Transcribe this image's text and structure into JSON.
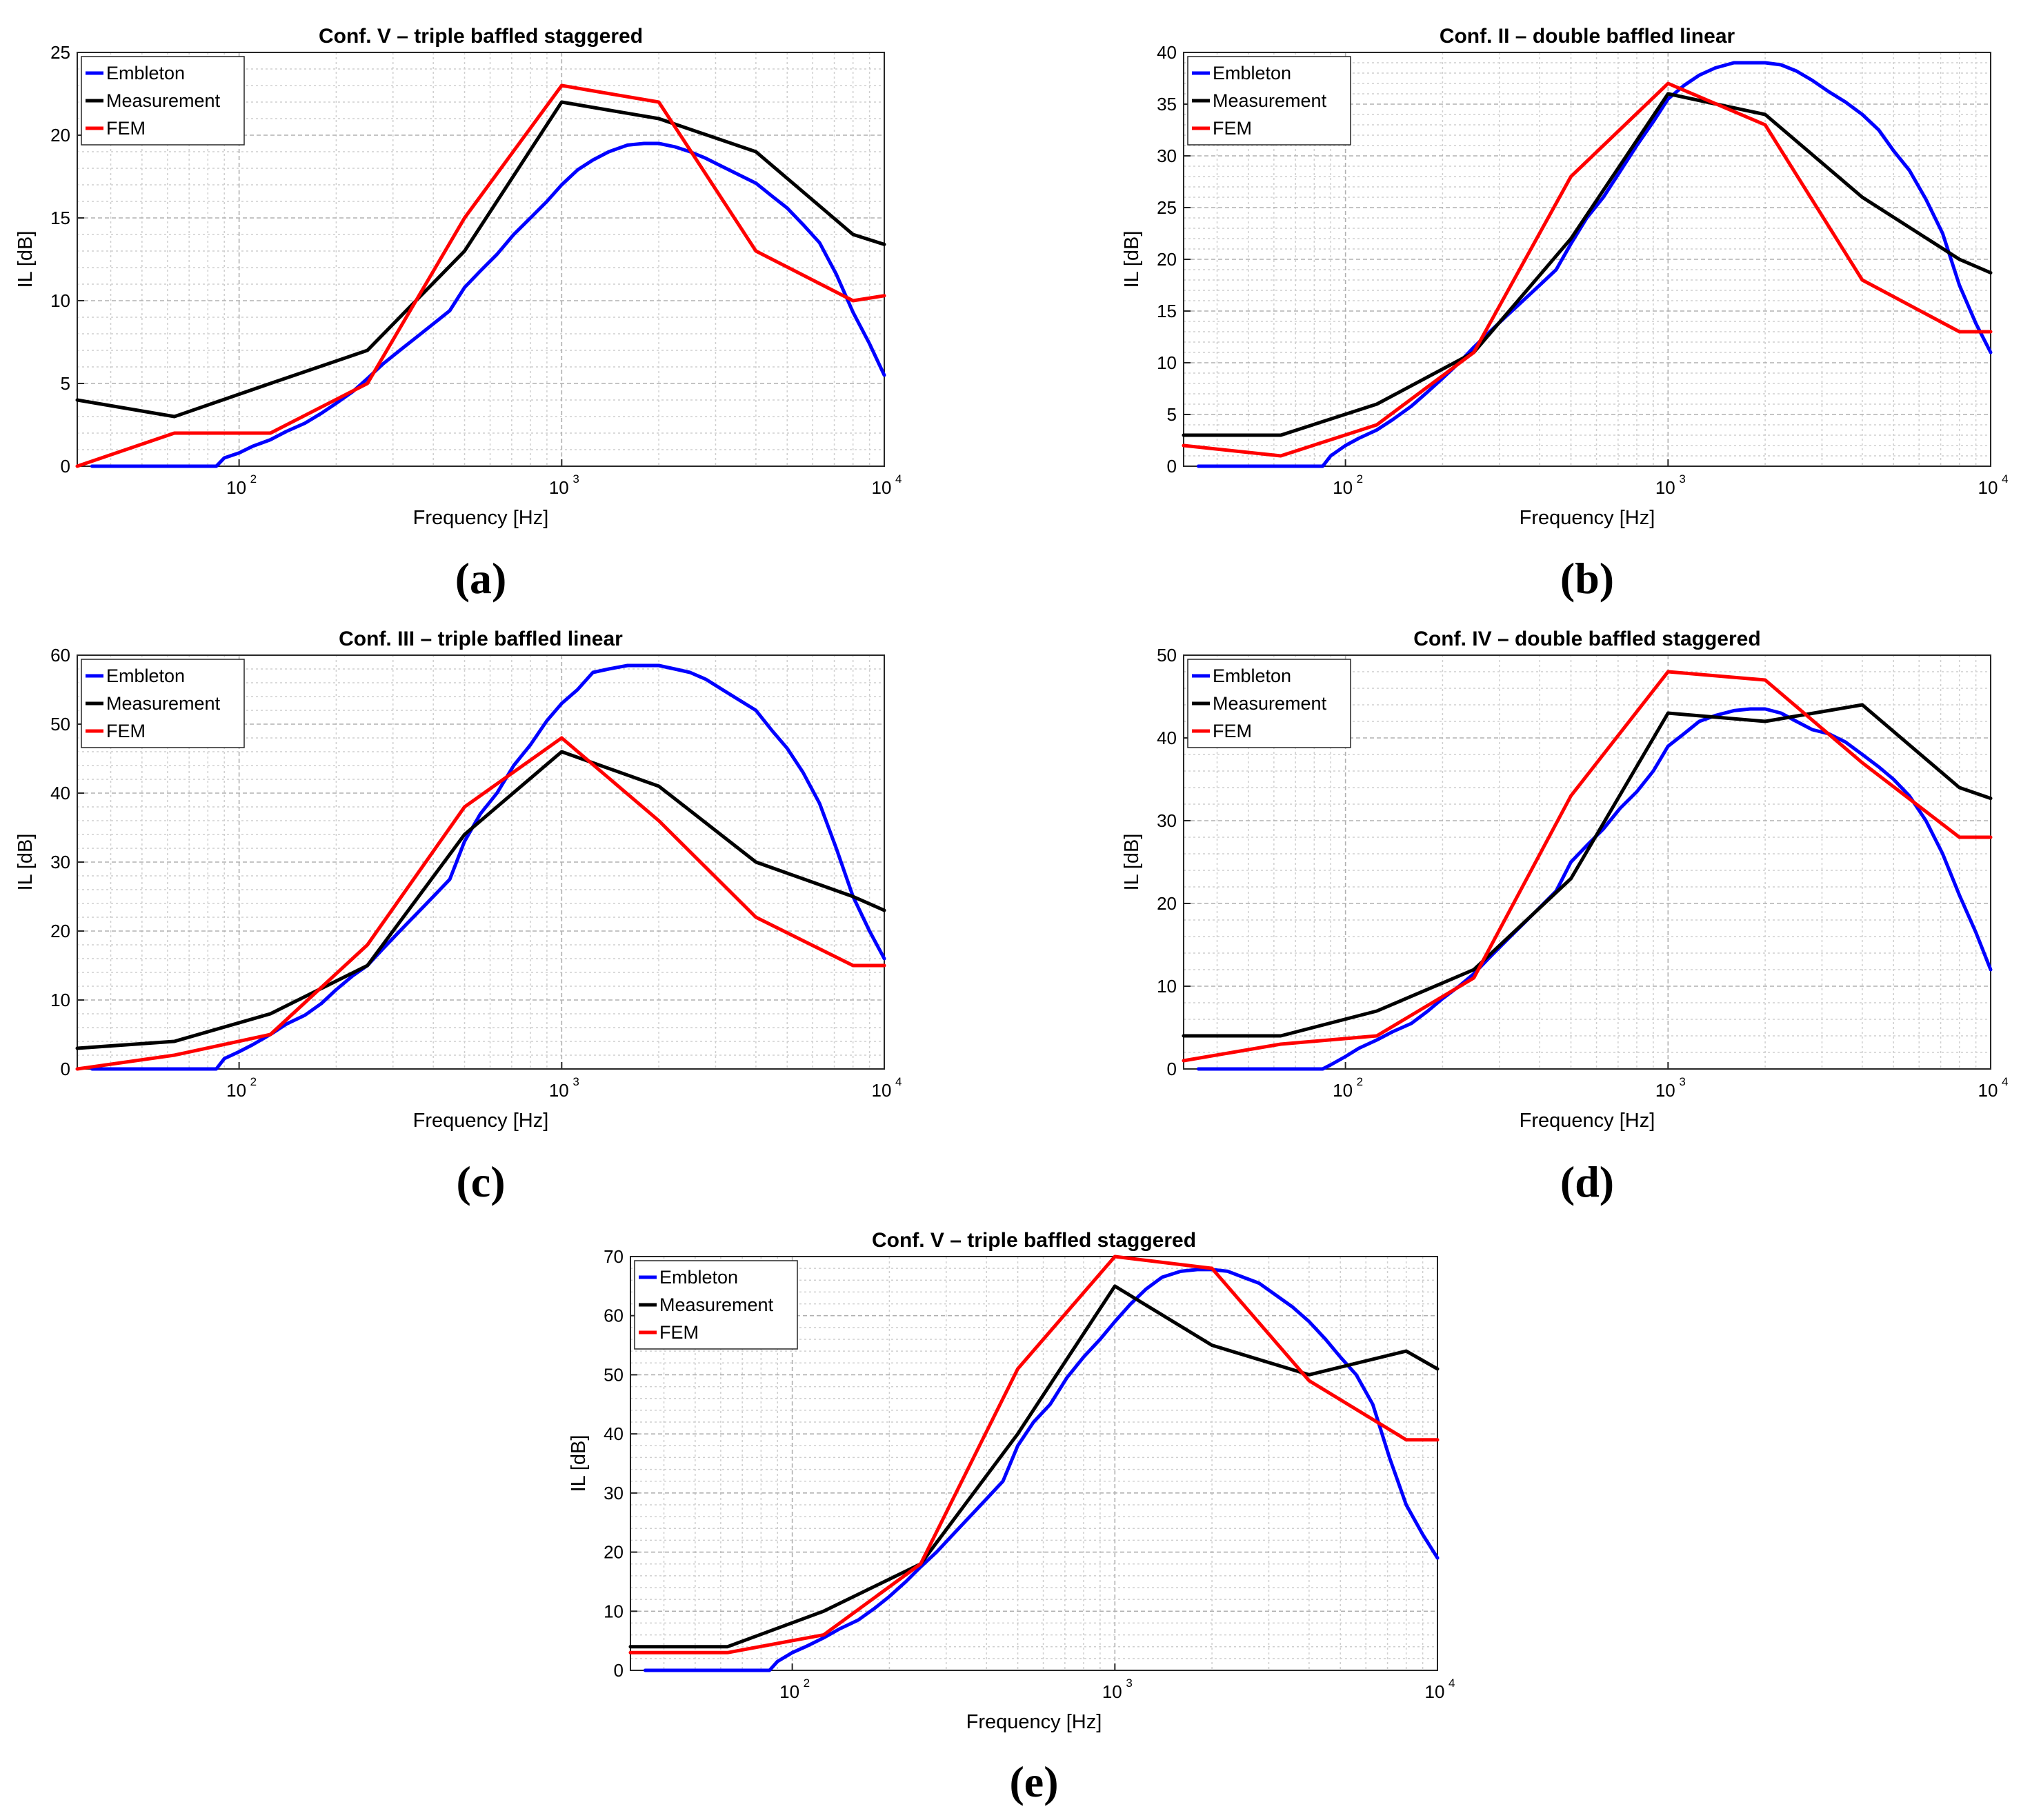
{
  "chart_data": [
    {
      "type": "line",
      "panel_label": "(a)",
      "title": "Conf. V – triple baffled staggered",
      "xlabel": "Frequency [Hz]",
      "ylabel": "IL [dB]",
      "xscale": "log",
      "xlim": [
        31.5,
        10000
      ],
      "ylim": [
        0,
        25
      ],
      "yticks": [
        0,
        5,
        10,
        15,
        20,
        25
      ],
      "xticks": [
        {
          "base": "10",
          "exp": "2"
        },
        {
          "base": "10",
          "exp": "3"
        },
        {
          "base": "10",
          "exp": "4"
        }
      ],
      "grid": true,
      "legend": "top-left",
      "series": [
        {
          "name": "Embleton",
          "color": "#0000ff",
          "x": [
            35,
            50,
            70,
            85,
            90,
            100,
            110,
            125,
            140,
            160,
            180,
            200,
            225,
            250,
            280,
            315,
            355,
            400,
            450,
            500,
            560,
            630,
            710,
            800,
            900,
            1000,
            1120,
            1250,
            1400,
            1600,
            1800,
            2000,
            2240,
            2500,
            2800,
            3150,
            3550,
            4000,
            4500,
            5000,
            5600,
            6300,
            7100,
            8000,
            9000,
            10000
          ],
          "y": [
            0,
            0,
            0,
            0,
            0.5,
            0.8,
            1.2,
            1.6,
            2.1,
            2.6,
            3.2,
            3.8,
            4.5,
            5.3,
            6.2,
            7.0,
            7.8,
            8.6,
            9.4,
            10.8,
            11.8,
            12.8,
            14.0,
            15.0,
            16.0,
            17.0,
            17.9,
            18.5,
            19.0,
            19.4,
            19.5,
            19.5,
            19.3,
            19.0,
            18.6,
            18.1,
            17.6,
            17.1,
            16.3,
            15.6,
            14.6,
            13.5,
            11.6,
            9.3,
            7.4,
            5.5
          ]
        },
        {
          "name": "Measurement",
          "color": "#000000",
          "x": [
            31.5,
            63,
            125,
            250,
            500,
            1000,
            2000,
            4000,
            8000,
            10000
          ],
          "y": [
            4,
            3,
            5,
            7,
            13,
            22,
            21,
            19,
            14,
            13.4
          ]
        },
        {
          "name": "FEM",
          "color": "#ff0000",
          "x": [
            31.5,
            63,
            125,
            250,
            500,
            1000,
            2000,
            4000,
            8000,
            10000
          ],
          "y": [
            0,
            2,
            2,
            5,
            15,
            23,
            22,
            13,
            10,
            10.3
          ]
        }
      ]
    },
    {
      "type": "line",
      "panel_label": "(b)",
      "title": "Conf. II – double baffled linear",
      "xlabel": "Frequency [Hz]",
      "ylabel": "IL [dB]",
      "xscale": "log",
      "xlim": [
        31.5,
        10000
      ],
      "ylim": [
        0,
        40
      ],
      "yticks": [
        0,
        5,
        10,
        15,
        20,
        25,
        30,
        35,
        40
      ],
      "xticks": [
        {
          "base": "10",
          "exp": "2"
        },
        {
          "base": "10",
          "exp": "3"
        },
        {
          "base": "10",
          "exp": "4"
        }
      ],
      "grid": true,
      "legend": "top-left",
      "series": [
        {
          "name": "Embleton",
          "color": "#0000ff",
          "x": [
            35,
            50,
            70,
            85,
            90,
            100,
            110,
            125,
            140,
            160,
            180,
            200,
            225,
            250,
            280,
            315,
            355,
            400,
            450,
            500,
            560,
            630,
            710,
            800,
            900,
            1000,
            1120,
            1250,
            1400,
            1600,
            1800,
            2000,
            2240,
            2500,
            2800,
            3150,
            3550,
            4000,
            4500,
            5000,
            5600,
            6300,
            7100,
            8000,
            9000,
            10000
          ],
          "y": [
            0,
            0,
            0,
            0,
            1,
            2,
            2.7,
            3.5,
            4.5,
            5.8,
            7.2,
            8.5,
            10,
            11.5,
            13,
            14.5,
            16,
            17.5,
            19,
            21.5,
            24,
            26,
            28.5,
            31,
            33.3,
            35.5,
            36.8,
            37.8,
            38.5,
            39,
            39,
            39,
            38.8,
            38.2,
            37.3,
            36.2,
            35.2,
            34,
            32.5,
            30.5,
            28.6,
            25.8,
            22.5,
            17.5,
            13.8,
            11
          ]
        },
        {
          "name": "Measurement",
          "color": "#000000",
          "x": [
            31.5,
            63,
            125,
            250,
            500,
            1000,
            2000,
            4000,
            8000,
            10000
          ],
          "y": [
            3,
            3,
            6,
            11,
            22,
            36,
            34,
            26,
            20,
            18.7
          ]
        },
        {
          "name": "FEM",
          "color": "#ff0000",
          "x": [
            31.5,
            63,
            125,
            250,
            500,
            1000,
            2000,
            4000,
            8000,
            10000
          ],
          "y": [
            2,
            1,
            4,
            11,
            28,
            37,
            33,
            18,
            13,
            13
          ]
        }
      ]
    },
    {
      "type": "line",
      "panel_label": "(c)",
      "title": "Conf. III – triple baffled linear",
      "xlabel": "Frequency [Hz]",
      "ylabel": "IL [dB]",
      "xscale": "log",
      "xlim": [
        31.5,
        10000
      ],
      "ylim": [
        0,
        60
      ],
      "yticks": [
        0,
        10,
        20,
        30,
        40,
        50,
        60
      ],
      "xticks": [
        {
          "base": "10",
          "exp": "2"
        },
        {
          "base": "10",
          "exp": "3"
        },
        {
          "base": "10",
          "exp": "4"
        }
      ],
      "grid": true,
      "legend": "top-left",
      "series": [
        {
          "name": "Embleton",
          "color": "#0000ff",
          "x": [
            35,
            50,
            70,
            85,
            90,
            100,
            110,
            125,
            140,
            160,
            180,
            200,
            225,
            250,
            280,
            315,
            355,
            400,
            450,
            500,
            560,
            630,
            710,
            800,
            900,
            1000,
            1120,
            1250,
            1400,
            1600,
            1800,
            2000,
            2240,
            2500,
            2800,
            3150,
            3550,
            4000,
            4500,
            5000,
            5600,
            6300,
            7100,
            8000,
            9000,
            10000
          ],
          "y": [
            0,
            0,
            0,
            0,
            1.5,
            2.5,
            3.5,
            5,
            6.5,
            7.8,
            9.5,
            11.5,
            13.5,
            15,
            17.5,
            20,
            22.5,
            25,
            27.5,
            33,
            37,
            40,
            44,
            47,
            50.5,
            53,
            55,
            57.5,
            58,
            58.5,
            58.5,
            58.5,
            58,
            57.5,
            56.5,
            55,
            53.5,
            52,
            49,
            46.5,
            43,
            38.5,
            32,
            25,
            20,
            16
          ]
        },
        {
          "name": "Measurement",
          "color": "#000000",
          "x": [
            31.5,
            63,
            125,
            250,
            500,
            1000,
            2000,
            4000,
            8000,
            10000
          ],
          "y": [
            3,
            4,
            8,
            15,
            34,
            46,
            41,
            30,
            25,
            23
          ]
        },
        {
          "name": "FEM",
          "color": "#ff0000",
          "x": [
            31.5,
            63,
            125,
            250,
            500,
            1000,
            2000,
            4000,
            8000,
            10000
          ],
          "y": [
            0,
            2,
            5,
            18,
            38,
            48,
            36,
            22,
            15,
            15
          ]
        }
      ]
    },
    {
      "type": "line",
      "panel_label": "(d)",
      "title": "Conf. IV – double baffled staggered",
      "xlabel": "Frequency [Hz]",
      "ylabel": "IL [dB]",
      "xscale": "log",
      "xlim": [
        31.5,
        10000
      ],
      "ylim": [
        0,
        50
      ],
      "yticks": [
        0,
        10,
        20,
        30,
        40,
        50
      ],
      "xticks": [
        {
          "base": "10",
          "exp": "2"
        },
        {
          "base": "10",
          "exp": "3"
        },
        {
          "base": "10",
          "exp": "4"
        }
      ],
      "grid": true,
      "legend": "top-left",
      "series": [
        {
          "name": "Embleton",
          "color": "#0000ff",
          "x": [
            35,
            50,
            70,
            85,
            90,
            100,
            110,
            125,
            140,
            160,
            180,
            200,
            225,
            250,
            280,
            315,
            355,
            400,
            450,
            500,
            560,
            630,
            710,
            800,
            900,
            1000,
            1120,
            1250,
            1400,
            1600,
            1800,
            2000,
            2240,
            2500,
            2800,
            3150,
            3550,
            4000,
            4500,
            5000,
            5600,
            6300,
            7100,
            8000,
            9000,
            10000
          ],
          "y": [
            0,
            0,
            0,
            0,
            0.5,
            1.5,
            2.5,
            3.5,
            4.5,
            5.5,
            7,
            8.5,
            10,
            11.5,
            13.5,
            15.5,
            17.5,
            19.5,
            21.5,
            25,
            27,
            29,
            31.5,
            33.5,
            36,
            39,
            40.5,
            42,
            42.7,
            43.3,
            43.5,
            43.5,
            43,
            42,
            41,
            40.5,
            39.5,
            38,
            36.5,
            35,
            33,
            30,
            26,
            21,
            16.5,
            12
          ]
        },
        {
          "name": "Measurement",
          "color": "#000000",
          "x": [
            31.5,
            63,
            125,
            250,
            500,
            1000,
            2000,
            4000,
            8000,
            10000
          ],
          "y": [
            4,
            4,
            7,
            12,
            23,
            43,
            42,
            44,
            34,
            32.7
          ]
        },
        {
          "name": "FEM",
          "color": "#ff0000",
          "x": [
            31.5,
            63,
            125,
            250,
            500,
            1000,
            2000,
            4000,
            8000,
            10000
          ],
          "y": [
            1,
            3,
            4,
            11,
            33,
            48,
            47,
            37,
            28,
            28
          ]
        }
      ]
    },
    {
      "type": "line",
      "panel_label": "(e)",
      "title": "Conf. V – triple baffled staggered",
      "xlabel": "Frequency [Hz]",
      "ylabel": "IL [dB]",
      "xscale": "log",
      "xlim": [
        31.5,
        10000
      ],
      "ylim": [
        0,
        70
      ],
      "yticks": [
        0,
        10,
        20,
        30,
        40,
        50,
        60,
        70
      ],
      "xticks": [
        {
          "base": "10",
          "exp": "2"
        },
        {
          "base": "10",
          "exp": "3"
        },
        {
          "base": "10",
          "exp": "4"
        }
      ],
      "grid": true,
      "legend": "top-left",
      "series": [
        {
          "name": "Embleton",
          "color": "#0000ff",
          "x": [
            35,
            50,
            70,
            85,
            90,
            100,
            110,
            125,
            140,
            160,
            180,
            200,
            225,
            250,
            280,
            315,
            355,
            400,
            450,
            500,
            560,
            630,
            710,
            800,
            900,
            1000,
            1120,
            1250,
            1400,
            1600,
            1800,
            2000,
            2240,
            2500,
            2800,
            3150,
            3550,
            4000,
            4500,
            5000,
            5600,
            6300,
            7100,
            8000,
            9000,
            10000
          ],
          "y": [
            0,
            0,
            0,
            0,
            1.5,
            3,
            4,
            5.5,
            7,
            8.5,
            10.5,
            12.5,
            15,
            17.5,
            20,
            23,
            26,
            29,
            32,
            38,
            42,
            45,
            49.5,
            53,
            56,
            59,
            62,
            64.5,
            66.5,
            67.5,
            67.8,
            67.8,
            67.5,
            66.5,
            65.5,
            63.5,
            61.5,
            59,
            56,
            53,
            50,
            45,
            36,
            28,
            23,
            19
          ]
        },
        {
          "name": "Measurement",
          "color": "#000000",
          "x": [
            31.5,
            63,
            125,
            250,
            500,
            1000,
            2000,
            4000,
            8000,
            10000
          ],
          "y": [
            4,
            4,
            10,
            18,
            40,
            65,
            55,
            50,
            54,
            51
          ]
        },
        {
          "name": "FEM",
          "color": "#ff0000",
          "x": [
            31.5,
            63,
            125,
            250,
            500,
            1000,
            2000,
            4000,
            8000,
            10000
          ],
          "y": [
            3,
            3,
            6,
            18,
            51,
            70,
            68,
            49,
            39,
            39
          ]
        }
      ]
    }
  ]
}
